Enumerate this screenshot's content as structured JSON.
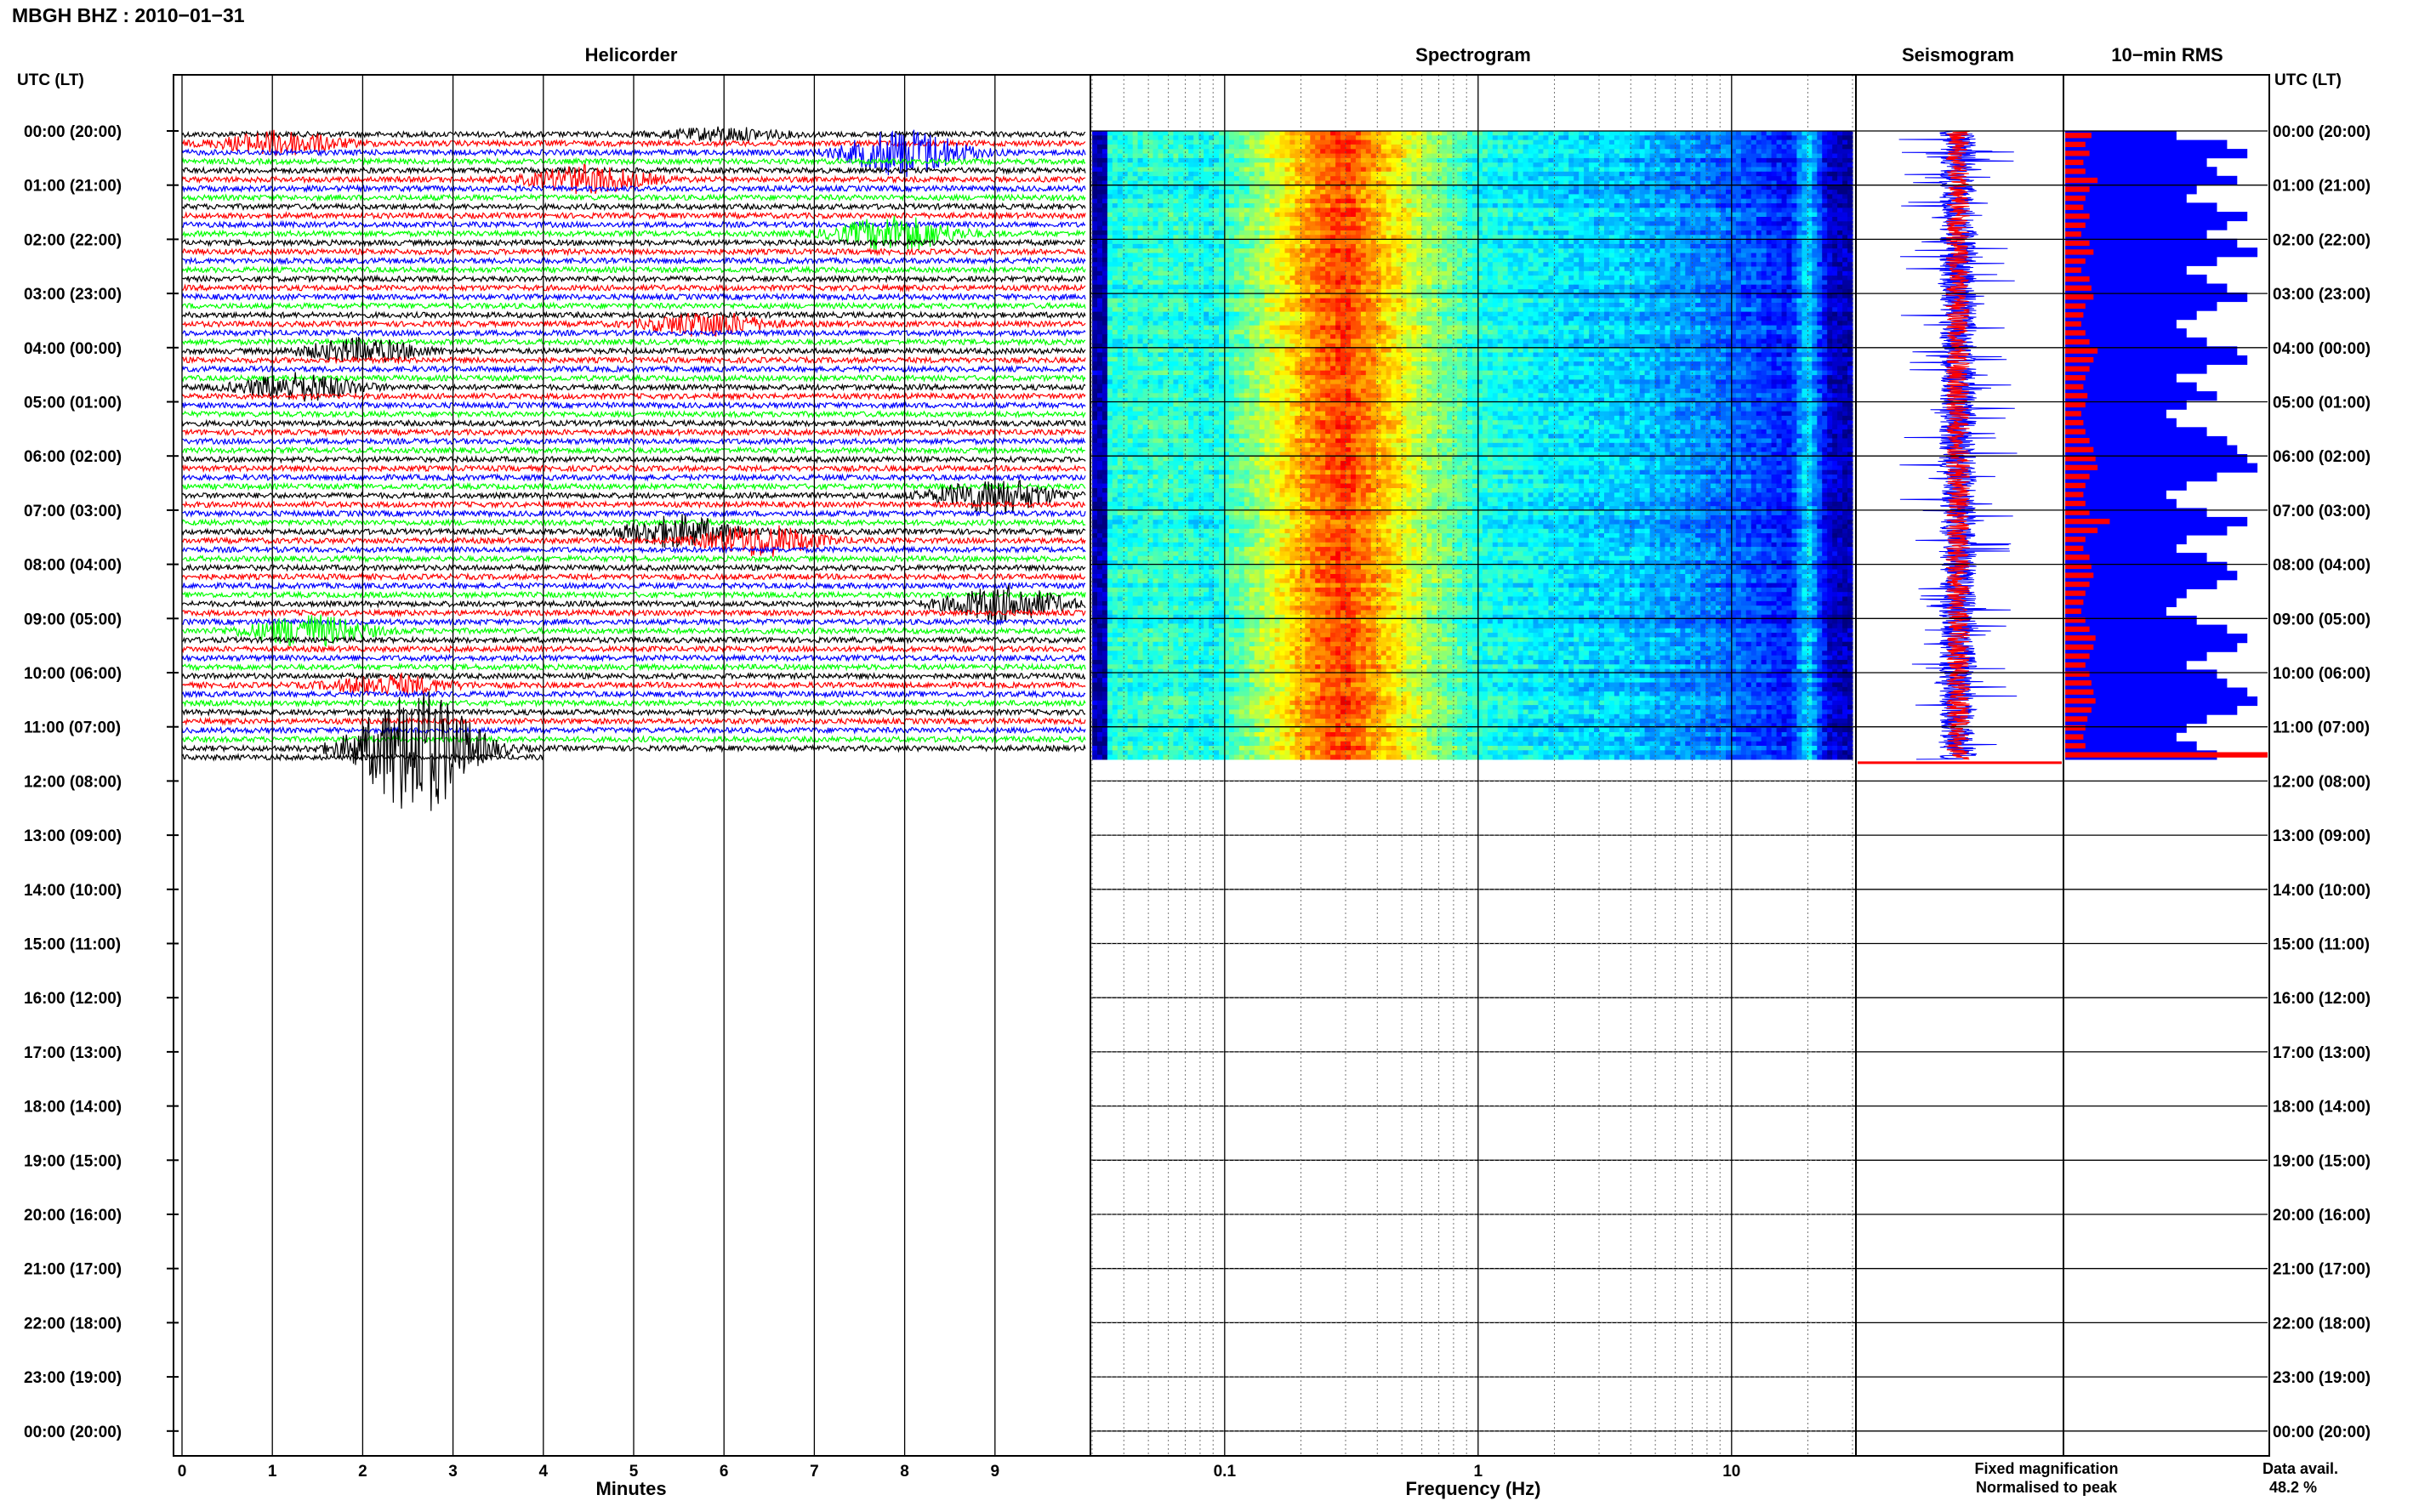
{
  "chart_data": {
    "type": "heatmap",
    "title": "MBGH BHZ : 2010−01−31",
    "row_axis_label": "UTC (LT)",
    "row_labels": [
      "00:00 (20:00)",
      "01:00 (21:00)",
      "02:00 (22:00)",
      "03:00 (23:00)",
      "04:00 (00:00)",
      "05:00 (01:00)",
      "06:00 (02:00)",
      "07:00 (03:00)",
      "08:00 (04:00)",
      "09:00 (05:00)",
      "10:00 (06:00)",
      "11:00 (07:00)",
      "12:00 (08:00)",
      "13:00 (09:00)",
      "14:00 (10:00)",
      "15:00 (11:00)",
      "16:00 (12:00)",
      "17:00 (13:00)",
      "18:00 (14:00)",
      "19:00 (15:00)",
      "20:00 (16:00)",
      "21:00 (17:00)",
      "22:00 (18:00)",
      "23:00 (19:00)",
      "00:00 (20:00)"
    ],
    "data_hours": 11.6,
    "panels": {
      "helicorder": {
        "title": "Helicorder",
        "xlabel": "Minutes",
        "x_ticks": [
          "0",
          "1",
          "2",
          "3",
          "4",
          "5",
          "6",
          "7",
          "8",
          "9"
        ],
        "xlim": [
          0,
          10
        ],
        "trace_colors": [
          "#000000",
          "#ff0000",
          "#0000ff",
          "#00ff00"
        ],
        "events": [
          {
            "hour": 0.0,
            "minute": 6.0,
            "amplitude": 0.6,
            "color": "black"
          },
          {
            "hour": 0.1,
            "minute": 1.1,
            "amplitude": 1.2,
            "color": "blue"
          },
          {
            "hour": 0.4,
            "minute": 8.0,
            "amplitude": 2.5,
            "color": "red"
          },
          {
            "hour": 0.9,
            "minute": 4.5,
            "amplitude": 1.4,
            "color": "green"
          },
          {
            "hour": 1.9,
            "minute": 7.9,
            "amplitude": 1.8,
            "color": "blue"
          },
          {
            "hour": 3.5,
            "minute": 5.8,
            "amplitude": 1.2,
            "color": "blue"
          },
          {
            "hour": 4.0,
            "minute": 2.0,
            "amplitude": 1.2,
            "color": "black"
          },
          {
            "hour": 4.6,
            "minute": 1.3,
            "amplitude": 1.4,
            "color": "red"
          },
          {
            "hour": 6.7,
            "minute": 9.0,
            "amplitude": 1.8,
            "color": "red"
          },
          {
            "hour": 7.3,
            "minute": 5.5,
            "amplitude": 1.6,
            "color": "red"
          },
          {
            "hour": 7.5,
            "minute": 6.4,
            "amplitude": 1.6,
            "color": "blue"
          },
          {
            "hour": 8.7,
            "minute": 9.1,
            "amplitude": 1.8,
            "color": "black"
          },
          {
            "hour": 9.2,
            "minute": 1.4,
            "amplitude": 1.6,
            "color": "black"
          },
          {
            "hour": 10.2,
            "minute": 2.3,
            "amplitude": 1.0,
            "color": "blue"
          },
          {
            "hour": 11.4,
            "minute": 2.6,
            "amplitude": 7.0,
            "color": "red"
          }
        ]
      },
      "spectrogram": {
        "title": "Spectrogram",
        "xlabel": "Frequency (Hz)",
        "x_scale": "log",
        "xlim": [
          0.03,
          30
        ],
        "x_ticks": [
          "0.1",
          "1",
          "10"
        ],
        "bands": [
          {
            "f": 0.035,
            "level": 0.4
          },
          {
            "f": 0.06,
            "level": 0.42
          },
          {
            "f": 0.09,
            "level": 0.38
          },
          {
            "f": 0.12,
            "level": 0.48
          },
          {
            "f": 0.17,
            "level": 0.62
          },
          {
            "f": 0.23,
            "level": 0.75
          },
          {
            "f": 0.3,
            "level": 0.82
          },
          {
            "f": 0.42,
            "level": 0.68
          },
          {
            "f": 0.6,
            "level": 0.55
          },
          {
            "f": 1.0,
            "level": 0.4
          },
          {
            "f": 2.0,
            "level": 0.35
          },
          {
            "f": 4.0,
            "level": 0.32
          },
          {
            "f": 8.0,
            "level": 0.25
          },
          {
            "f": 12.0,
            "level": 0.2
          },
          {
            "f": 17.0,
            "level": 0.14
          },
          {
            "f": 20.0,
            "level": 0.35
          },
          {
            "f": 24.0,
            "level": 0.08
          },
          {
            "f": 30.0,
            "level": 0.04
          }
        ]
      },
      "seismogram": {
        "title": "Seismogram",
        "legend": [
          {
            "label": "Fixed magnification",
            "color": "#0000ff"
          },
          {
            "label": "Normalised to peak",
            "color": "#ff0000"
          }
        ]
      },
      "rms": {
        "title": "10−min RMS",
        "rms_fixed": [
          0.55,
          0.8,
          0.9,
          0.7,
          0.75,
          0.85,
          0.65,
          0.6,
          0.75,
          0.9,
          0.8,
          0.7,
          0.85,
          0.95,
          0.75,
          0.6,
          0.7,
          0.8,
          0.9,
          0.75,
          0.65,
          0.55,
          0.6,
          0.7,
          0.85,
          0.9,
          0.7,
          0.55,
          0.65,
          0.75,
          0.6,
          0.5,
          0.55,
          0.7,
          0.8,
          0.85,
          0.9,
          0.95,
          0.75,
          0.6,
          0.5,
          0.55,
          0.7,
          0.9,
          0.8,
          0.6,
          0.55,
          0.7,
          0.8,
          0.85,
          0.75,
          0.6,
          0.55,
          0.5,
          0.65,
          0.8,
          0.9,
          0.85,
          0.7,
          0.6,
          0.75,
          0.8,
          0.9,
          0.95,
          0.85,
          0.7,
          0.6,
          0.55,
          0.65,
          0.75
        ],
        "rms_normalised": [
          0.13,
          0.1,
          0.12,
          0.09,
          0.1,
          0.16,
          0.12,
          0.1,
          0.09,
          0.12,
          0.1,
          0.08,
          0.12,
          0.14,
          0.1,
          0.08,
          0.12,
          0.13,
          0.14,
          0.1,
          0.09,
          0.08,
          0.1,
          0.12,
          0.16,
          0.14,
          0.12,
          0.1,
          0.09,
          0.11,
          0.1,
          0.08,
          0.09,
          0.1,
          0.12,
          0.14,
          0.15,
          0.16,
          0.12,
          0.1,
          0.09,
          0.1,
          0.12,
          0.22,
          0.16,
          0.1,
          0.09,
          0.12,
          0.13,
          0.14,
          0.12,
          0.1,
          0.09,
          0.08,
          0.1,
          0.12,
          0.15,
          0.14,
          0.12,
          0.1,
          0.12,
          0.13,
          0.14,
          0.15,
          0.13,
          0.11,
          0.1,
          0.09,
          0.1,
          1.0
        ]
      }
    },
    "data_availability": {
      "label": "Data avail.",
      "value": "48.2 %"
    }
  }
}
